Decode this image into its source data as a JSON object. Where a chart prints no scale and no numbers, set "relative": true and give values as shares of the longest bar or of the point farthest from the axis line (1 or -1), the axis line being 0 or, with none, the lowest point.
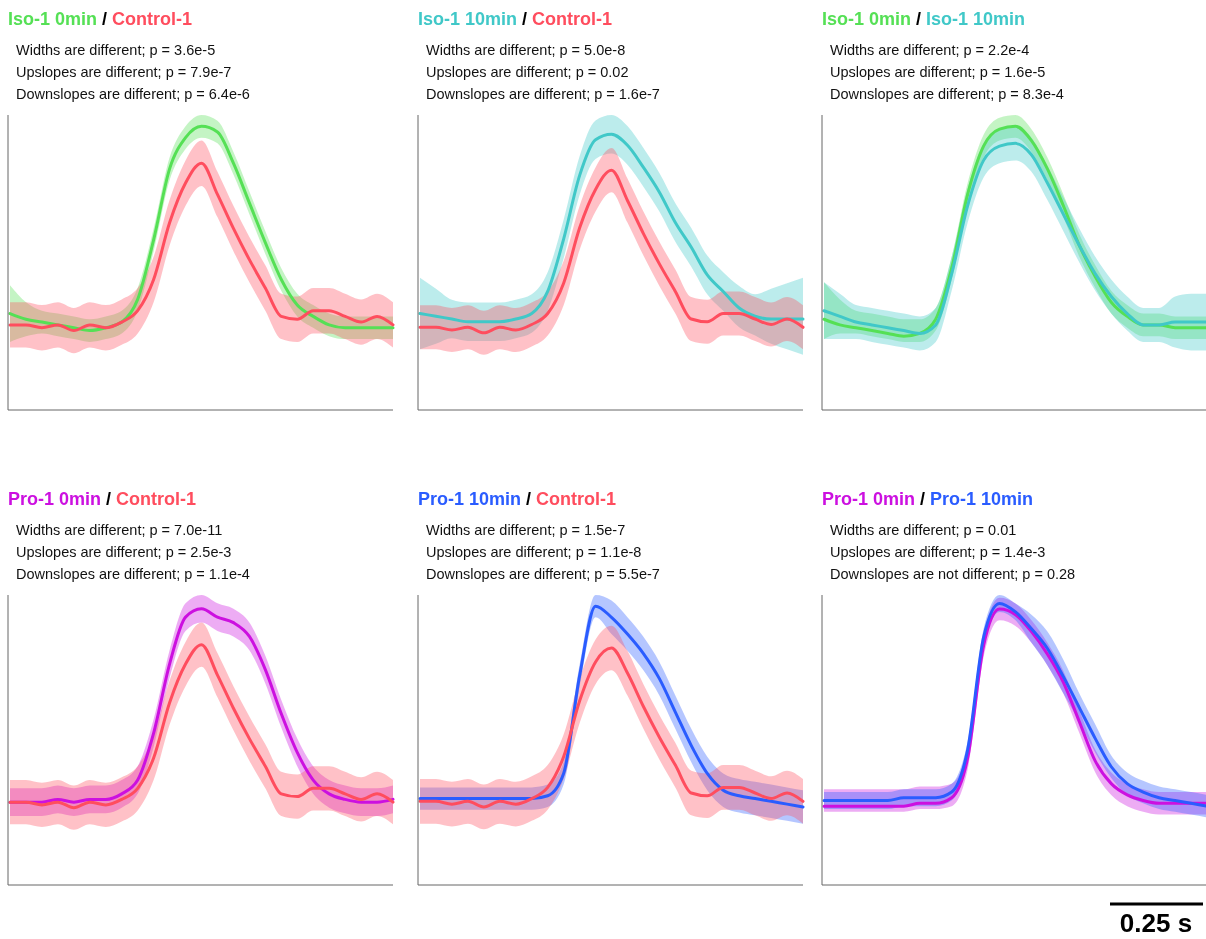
{
  "chart_data": [
    {
      "type": "line",
      "relative": true,
      "legend": "top left",
      "legend_title": "/",
      "categories": [
        null,
        null,
        null,
        null,
        null,
        null,
        null,
        null,
        null,
        null,
        null,
        null,
        null,
        null,
        null,
        null,
        null,
        null,
        null,
        null,
        null,
        null,
        null,
        null,
        null
      ],
      "annotations": [
        "Widths are different; p = 3.6e-5",
        "Upslopes are different; p = 7.9e-7",
        "Downslopes are different; p = 6.4e-6"
      ],
      "series": [
        {
          "name": "Iso-1 0min",
          "color": "#55e055",
          "values": [
            0.34,
            0.32,
            0.31,
            0.3,
            0.29,
            0.28,
            0.29,
            0.31,
            0.39,
            0.6,
            0.85,
            0.96,
            1.0,
            0.98,
            0.87,
            0.73,
            0.59,
            0.46,
            0.37,
            0.33,
            0.3,
            0.29,
            0.29,
            0.29,
            0.29
          ],
          "lower": [
            0.24,
            0.26,
            0.27,
            0.26,
            0.25,
            0.24,
            0.25,
            0.27,
            0.35,
            0.56,
            0.81,
            0.92,
            0.96,
            0.94,
            0.83,
            0.69,
            0.55,
            0.42,
            0.33,
            0.29,
            0.26,
            0.25,
            0.25,
            0.25,
            0.25
          ],
          "upper": [
            0.44,
            0.38,
            0.35,
            0.34,
            0.33,
            0.32,
            0.33,
            0.35,
            0.43,
            0.64,
            0.89,
            1.0,
            1.04,
            1.02,
            0.91,
            0.77,
            0.63,
            0.5,
            0.41,
            0.37,
            0.34,
            0.33,
            0.33,
            0.33,
            0.33
          ]
        },
        {
          "name": "Control-1",
          "color": "#ff4d5e",
          "values": [
            0.3,
            0.3,
            0.29,
            0.3,
            0.28,
            0.3,
            0.29,
            0.31,
            0.35,
            0.46,
            0.66,
            0.8,
            0.87,
            0.76,
            0.64,
            0.53,
            0.43,
            0.33,
            0.32,
            0.35,
            0.35,
            0.33,
            0.31,
            0.33,
            0.3
          ],
          "lower": [
            0.22,
            0.22,
            0.21,
            0.22,
            0.2,
            0.22,
            0.21,
            0.23,
            0.27,
            0.38,
            0.58,
            0.72,
            0.79,
            0.68,
            0.56,
            0.45,
            0.35,
            0.25,
            0.24,
            0.27,
            0.27,
            0.25,
            0.23,
            0.25,
            0.22
          ],
          "upper": [
            0.38,
            0.38,
            0.37,
            0.38,
            0.36,
            0.38,
            0.37,
            0.39,
            0.43,
            0.54,
            0.74,
            0.88,
            0.95,
            0.84,
            0.72,
            0.61,
            0.51,
            0.41,
            0.4,
            0.43,
            0.43,
            0.41,
            0.39,
            0.41,
            0.38
          ]
        }
      ]
    },
    {
      "type": "line",
      "relative": true,
      "legend": "top left",
      "legend_title": "/",
      "categories": [
        null,
        null,
        null,
        null,
        null,
        null,
        null,
        null,
        null,
        null,
        null,
        null,
        null,
        null,
        null,
        null,
        null,
        null,
        null,
        null,
        null,
        null,
        null,
        null,
        null
      ],
      "annotations": [
        "Widths are different; p = 5.0e-8",
        "Upslopes are different; p = 0.02",
        "Downslopes are different; p = 1.6e-7"
      ],
      "series": [
        {
          "name": "Iso-1 10min",
          "color": "#40c8c8",
          "values": [
            0.35,
            0.34,
            0.33,
            0.32,
            0.32,
            0.32,
            0.33,
            0.35,
            0.43,
            0.62,
            0.85,
            0.98,
            1.0,
            0.96,
            0.88,
            0.79,
            0.68,
            0.59,
            0.49,
            0.43,
            0.37,
            0.34,
            0.33,
            0.33,
            0.33
          ],
          "lower": [
            0.22,
            0.24,
            0.26,
            0.25,
            0.25,
            0.25,
            0.26,
            0.28,
            0.36,
            0.55,
            0.78,
            0.91,
            0.93,
            0.89,
            0.81,
            0.72,
            0.61,
            0.52,
            0.42,
            0.36,
            0.3,
            0.27,
            0.24,
            0.22,
            0.2
          ],
          "upper": [
            0.48,
            0.44,
            0.4,
            0.39,
            0.39,
            0.39,
            0.4,
            0.42,
            0.5,
            0.69,
            0.92,
            1.05,
            1.07,
            1.03,
            0.95,
            0.86,
            0.75,
            0.66,
            0.56,
            0.5,
            0.45,
            0.42,
            0.44,
            0.46,
            0.48
          ]
        },
        {
          "name": "Control-1",
          "color": "#ff4d5e",
          "values": [
            0.3,
            0.3,
            0.29,
            0.3,
            0.28,
            0.3,
            0.29,
            0.31,
            0.35,
            0.46,
            0.66,
            0.8,
            0.87,
            0.76,
            0.64,
            0.53,
            0.43,
            0.33,
            0.32,
            0.35,
            0.35,
            0.33,
            0.31,
            0.33,
            0.3
          ],
          "lower": [
            0.22,
            0.22,
            0.21,
            0.22,
            0.2,
            0.22,
            0.21,
            0.23,
            0.27,
            0.38,
            0.58,
            0.72,
            0.79,
            0.68,
            0.56,
            0.45,
            0.35,
            0.25,
            0.24,
            0.27,
            0.27,
            0.25,
            0.23,
            0.25,
            0.22
          ],
          "upper": [
            0.38,
            0.38,
            0.37,
            0.38,
            0.36,
            0.38,
            0.37,
            0.39,
            0.43,
            0.54,
            0.74,
            0.88,
            0.95,
            0.84,
            0.72,
            0.61,
            0.51,
            0.41,
            0.4,
            0.43,
            0.43,
            0.41,
            0.39,
            0.41,
            0.38
          ]
        }
      ]
    },
    {
      "type": "line",
      "relative": true,
      "legend": "top left",
      "legend_title": "/",
      "categories": [
        null,
        null,
        null,
        null,
        null,
        null,
        null,
        null,
        null,
        null,
        null,
        null,
        null,
        null,
        null,
        null,
        null,
        null,
        null,
        null,
        null,
        null,
        null,
        null,
        null
      ],
      "annotations": [
        "Widths are different; p = 2.2e-4",
        "Upslopes are different; p = 1.6e-5",
        "Downslopes are different; p = 8.3e-4"
      ],
      "series": [
        {
          "name": "Iso-1 0min",
          "color": "#55e055",
          "values": [
            0.32,
            0.3,
            0.29,
            0.28,
            0.27,
            0.26,
            0.27,
            0.32,
            0.5,
            0.76,
            0.93,
            0.99,
            1.0,
            0.95,
            0.85,
            0.72,
            0.58,
            0.47,
            0.38,
            0.33,
            0.3,
            0.3,
            0.29,
            0.29,
            0.29
          ],
          "lower": [
            0.25,
            0.27,
            0.27,
            0.26,
            0.25,
            0.24,
            0.24,
            0.28,
            0.46,
            0.72,
            0.89,
            0.95,
            0.96,
            0.91,
            0.81,
            0.68,
            0.54,
            0.43,
            0.34,
            0.29,
            0.26,
            0.26,
            0.25,
            0.25,
            0.25
          ],
          "upper": [
            0.45,
            0.39,
            0.35,
            0.34,
            0.33,
            0.32,
            0.32,
            0.36,
            0.54,
            0.8,
            0.97,
            1.03,
            1.04,
            0.99,
            0.89,
            0.76,
            0.62,
            0.51,
            0.42,
            0.37,
            0.34,
            0.34,
            0.33,
            0.33,
            0.33
          ]
        },
        {
          "name": "Iso-1 10min",
          "color": "#40c8c8",
          "values": [
            0.35,
            0.33,
            0.31,
            0.3,
            0.29,
            0.28,
            0.27,
            0.3,
            0.48,
            0.72,
            0.88,
            0.93,
            0.94,
            0.9,
            0.8,
            0.69,
            0.58,
            0.48,
            0.4,
            0.34,
            0.3,
            0.3,
            0.31,
            0.31,
            0.31
          ],
          "lower": [
            0.25,
            0.25,
            0.25,
            0.24,
            0.23,
            0.22,
            0.21,
            0.24,
            0.42,
            0.66,
            0.82,
            0.87,
            0.88,
            0.84,
            0.74,
            0.63,
            0.52,
            0.42,
            0.34,
            0.28,
            0.24,
            0.24,
            0.22,
            0.21,
            0.21
          ],
          "upper": [
            0.45,
            0.41,
            0.37,
            0.36,
            0.35,
            0.34,
            0.33,
            0.36,
            0.54,
            0.78,
            0.94,
            0.99,
            1.0,
            0.96,
            0.86,
            0.75,
            0.64,
            0.54,
            0.46,
            0.4,
            0.36,
            0.36,
            0.4,
            0.41,
            0.41
          ]
        }
      ]
    },
    {
      "type": "line",
      "relative": true,
      "legend": "top left",
      "legend_title": "/",
      "categories": [
        null,
        null,
        null,
        null,
        null,
        null,
        null,
        null,
        null,
        null,
        null,
        null,
        null,
        null,
        null,
        null,
        null,
        null,
        null,
        null,
        null,
        null,
        null,
        null,
        null
      ],
      "annotations": [
        "Widths are different; p = 7.0e-11",
        "Upslopes are different; p = 2.5e-3",
        "Downslopes are different; p = 1.1e-4"
      ],
      "series": [
        {
          "name": "Pro-1 0min",
          "color": "#cc10e0",
          "values": [
            0.3,
            0.3,
            0.3,
            0.31,
            0.3,
            0.31,
            0.31,
            0.33,
            0.38,
            0.55,
            0.8,
            0.97,
            1.0,
            0.97,
            0.95,
            0.9,
            0.78,
            0.62,
            0.48,
            0.38,
            0.33,
            0.31,
            0.3,
            0.3,
            0.31
          ],
          "lower": [
            0.25,
            0.25,
            0.25,
            0.26,
            0.25,
            0.26,
            0.26,
            0.28,
            0.33,
            0.5,
            0.75,
            0.92,
            0.95,
            0.92,
            0.9,
            0.85,
            0.73,
            0.57,
            0.43,
            0.33,
            0.28,
            0.26,
            0.25,
            0.25,
            0.26
          ],
          "upper": [
            0.35,
            0.35,
            0.35,
            0.36,
            0.35,
            0.36,
            0.36,
            0.38,
            0.43,
            0.6,
            0.85,
            1.02,
            1.05,
            1.02,
            1.0,
            0.95,
            0.83,
            0.67,
            0.53,
            0.43,
            0.38,
            0.36,
            0.35,
            0.35,
            0.36
          ]
        },
        {
          "name": "Control-1",
          "color": "#ff4d5e",
          "values": [
            0.3,
            0.3,
            0.29,
            0.3,
            0.28,
            0.3,
            0.29,
            0.31,
            0.35,
            0.46,
            0.66,
            0.8,
            0.87,
            0.76,
            0.64,
            0.53,
            0.43,
            0.33,
            0.32,
            0.35,
            0.35,
            0.33,
            0.31,
            0.33,
            0.3
          ],
          "lower": [
            0.22,
            0.22,
            0.21,
            0.22,
            0.2,
            0.22,
            0.21,
            0.23,
            0.27,
            0.38,
            0.58,
            0.72,
            0.79,
            0.68,
            0.56,
            0.45,
            0.35,
            0.25,
            0.24,
            0.27,
            0.27,
            0.25,
            0.23,
            0.25,
            0.22
          ],
          "upper": [
            0.38,
            0.38,
            0.37,
            0.38,
            0.36,
            0.38,
            0.37,
            0.39,
            0.43,
            0.54,
            0.74,
            0.88,
            0.95,
            0.84,
            0.72,
            0.61,
            0.51,
            0.41,
            0.4,
            0.43,
            0.43,
            0.41,
            0.39,
            0.41,
            0.38
          ]
        }
      ]
    },
    {
      "type": "line",
      "relative": true,
      "legend": "top left",
      "legend_title": "/",
      "categories": [
        null,
        null,
        null,
        null,
        null,
        null,
        null,
        null,
        null,
        null,
        null,
        null,
        null,
        null,
        null,
        null,
        null,
        null,
        null,
        null,
        null,
        null,
        null,
        null,
        null
      ],
      "annotations": [
        "Widths are different; p = 1.5e-7",
        "Upslopes are different; p = 1.1e-8",
        "Downslopes are different; p = 5.5e-7"
      ],
      "series": [
        {
          "name": "Pro-1 10min",
          "color": "#2a5cff",
          "values": [
            0.31,
            0.31,
            0.31,
            0.31,
            0.31,
            0.31,
            0.31,
            0.31,
            0.32,
            0.4,
            0.75,
            1.0,
            0.96,
            0.9,
            0.83,
            0.74,
            0.62,
            0.5,
            0.4,
            0.34,
            0.32,
            0.31,
            0.3,
            0.29,
            0.28
          ],
          "lower": [
            0.27,
            0.27,
            0.27,
            0.27,
            0.27,
            0.27,
            0.27,
            0.27,
            0.28,
            0.36,
            0.71,
            0.96,
            0.9,
            0.84,
            0.77,
            0.68,
            0.56,
            0.44,
            0.34,
            0.28,
            0.26,
            0.25,
            0.24,
            0.23,
            0.22
          ],
          "upper": [
            0.35,
            0.35,
            0.35,
            0.35,
            0.35,
            0.35,
            0.35,
            0.35,
            0.36,
            0.44,
            0.79,
            1.04,
            1.02,
            0.96,
            0.89,
            0.8,
            0.68,
            0.56,
            0.46,
            0.4,
            0.38,
            0.37,
            0.36,
            0.35,
            0.34
          ]
        },
        {
          "name": "Control-1",
          "color": "#ff4d5e",
          "values": [
            0.3,
            0.3,
            0.29,
            0.3,
            0.28,
            0.3,
            0.29,
            0.31,
            0.35,
            0.46,
            0.66,
            0.8,
            0.85,
            0.76,
            0.64,
            0.53,
            0.43,
            0.33,
            0.32,
            0.35,
            0.35,
            0.33,
            0.31,
            0.33,
            0.3
          ],
          "lower": [
            0.22,
            0.22,
            0.21,
            0.22,
            0.2,
            0.22,
            0.21,
            0.23,
            0.27,
            0.38,
            0.58,
            0.72,
            0.77,
            0.68,
            0.56,
            0.45,
            0.35,
            0.25,
            0.24,
            0.27,
            0.27,
            0.25,
            0.23,
            0.25,
            0.22
          ],
          "upper": [
            0.38,
            0.38,
            0.37,
            0.38,
            0.36,
            0.38,
            0.37,
            0.39,
            0.43,
            0.54,
            0.74,
            0.88,
            0.93,
            0.84,
            0.72,
            0.61,
            0.51,
            0.41,
            0.4,
            0.43,
            0.43,
            0.41,
            0.39,
            0.41,
            0.38
          ]
        }
      ]
    },
    {
      "type": "line",
      "relative": true,
      "legend": "top left",
      "legend_title": "/",
      "categories": [
        null,
        null,
        null,
        null,
        null,
        null,
        null,
        null,
        null,
        null,
        null,
        null,
        null,
        null,
        null,
        null,
        null,
        null,
        null,
        null,
        null,
        null,
        null,
        null,
        null
      ],
      "annotations": [
        "Widths are different; p = 0.01",
        "Upslopes are different; p = 1.4e-3",
        "Downslopes are not different; p = 0.28",
        "0.25 s"
      ],
      "series": [
        {
          "name": "Pro-1 0min",
          "color": "#cc10e0",
          "values": [
            0.28,
            0.28,
            0.28,
            0.28,
            0.28,
            0.28,
            0.29,
            0.29,
            0.31,
            0.45,
            0.85,
            0.98,
            0.96,
            0.9,
            0.82,
            0.72,
            0.58,
            0.44,
            0.36,
            0.32,
            0.3,
            0.29,
            0.29,
            0.29,
            0.29
          ],
          "lower": [
            0.26,
            0.26,
            0.26,
            0.26,
            0.26,
            0.26,
            0.27,
            0.27,
            0.28,
            0.41,
            0.81,
            0.94,
            0.92,
            0.86,
            0.78,
            0.68,
            0.54,
            0.4,
            0.32,
            0.28,
            0.26,
            0.25,
            0.25,
            0.25,
            0.25
          ],
          "upper": [
            0.34,
            0.34,
            0.34,
            0.34,
            0.34,
            0.34,
            0.35,
            0.35,
            0.36,
            0.49,
            0.89,
            1.02,
            1.0,
            0.94,
            0.86,
            0.76,
            0.62,
            0.48,
            0.4,
            0.36,
            0.34,
            0.33,
            0.33,
            0.33,
            0.33
          ]
        },
        {
          "name": "Pro-1 10min",
          "color": "#2a5cff",
          "values": [
            0.3,
            0.3,
            0.3,
            0.3,
            0.3,
            0.31,
            0.31,
            0.31,
            0.33,
            0.48,
            0.88,
            1.0,
            0.97,
            0.91,
            0.84,
            0.74,
            0.63,
            0.52,
            0.42,
            0.36,
            0.33,
            0.31,
            0.3,
            0.29,
            0.28
          ],
          "lower": [
            0.27,
            0.27,
            0.27,
            0.27,
            0.27,
            0.28,
            0.28,
            0.28,
            0.3,
            0.45,
            0.85,
            0.97,
            0.94,
            0.86,
            0.78,
            0.68,
            0.58,
            0.47,
            0.38,
            0.32,
            0.29,
            0.27,
            0.26,
            0.25,
            0.24
          ],
          "upper": [
            0.33,
            0.33,
            0.33,
            0.33,
            0.33,
            0.34,
            0.34,
            0.34,
            0.36,
            0.51,
            0.91,
            1.03,
            1.0,
            0.96,
            0.9,
            0.8,
            0.68,
            0.57,
            0.46,
            0.4,
            0.37,
            0.35,
            0.34,
            0.33,
            0.32
          ]
        }
      ]
    }
  ]
}
